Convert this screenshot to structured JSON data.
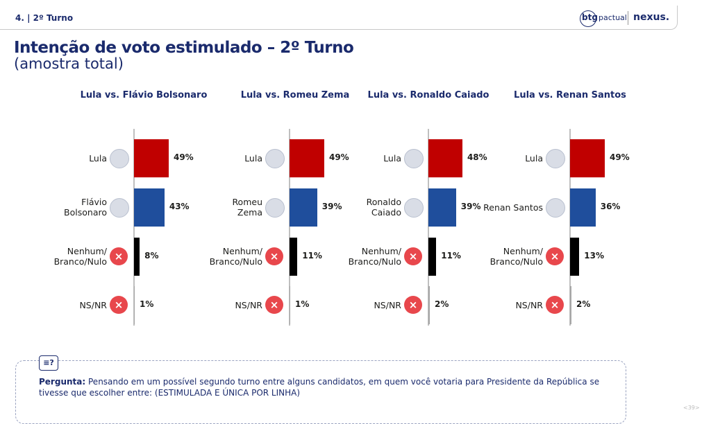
{
  "header": {
    "section": "4. | 2º Turno",
    "logo_btg": "btg",
    "logo_pactual": "pactual",
    "logo_nexus": "nexus."
  },
  "title": "Intenção de voto estimulado – 2º Turno",
  "subtitle": "(amostra total)",
  "question": {
    "label": "Pergunta:",
    "text": "Pensando em um possível segundo turno entre alguns candidatos, em quem você votaria para Presidente da República se tivesse que escolher entre: (ESTIMULADA E ÚNICA POR LINHA)"
  },
  "page_number": "<39>",
  "chart_data": [
    {
      "type": "bar",
      "orientation": "horizontal",
      "title": "Lula vs. Flávio Bolsonaro",
      "categories": [
        "Lula",
        "Flávio\nBolsonaro",
        "Nenhum/\nBranco/Nulo",
        "NS/NR"
      ],
      "values": [
        49,
        43,
        8,
        1
      ],
      "value_labels": [
        "49%",
        "43%",
        "8%",
        "1%"
      ],
      "colors": [
        "#c00000",
        "#1f4e9c",
        "#000000",
        "#a6a6a6"
      ]
    },
    {
      "type": "bar",
      "orientation": "horizontal",
      "title": "Lula vs. Romeu Zema",
      "categories": [
        "Lula",
        "Romeu\nZema",
        "Nenhum/\nBranco/Nulo",
        "NS/NR"
      ],
      "values": [
        49,
        39,
        11,
        1
      ],
      "value_labels": [
        "49%",
        "39%",
        "11%",
        "1%"
      ],
      "colors": [
        "#c00000",
        "#1f4e9c",
        "#000000",
        "#a6a6a6"
      ]
    },
    {
      "type": "bar",
      "orientation": "horizontal",
      "title": "Lula vs. Ronaldo Caiado",
      "categories": [
        "Lula",
        "Ronaldo\nCaiado",
        "Nenhum/\nBranco/Nulo",
        "NS/NR"
      ],
      "values": [
        48,
        39,
        11,
        2
      ],
      "value_labels": [
        "48%",
        "39%",
        "11%",
        "2%"
      ],
      "colors": [
        "#c00000",
        "#1f4e9c",
        "#000000",
        "#a6a6a6"
      ]
    },
    {
      "type": "bar",
      "orientation": "horizontal",
      "title": "Lula vs. Renan Santos",
      "categories": [
        "Lula",
        "Renan Santos",
        "Nenhum/\nBranco/Nulo",
        "NS/NR"
      ],
      "values": [
        49,
        36,
        13,
        2
      ],
      "value_labels": [
        "49%",
        "36%",
        "13%",
        "2%"
      ],
      "colors": [
        "#c00000",
        "#1f4e9c",
        "#000000",
        "#a6a6a6"
      ]
    }
  ]
}
